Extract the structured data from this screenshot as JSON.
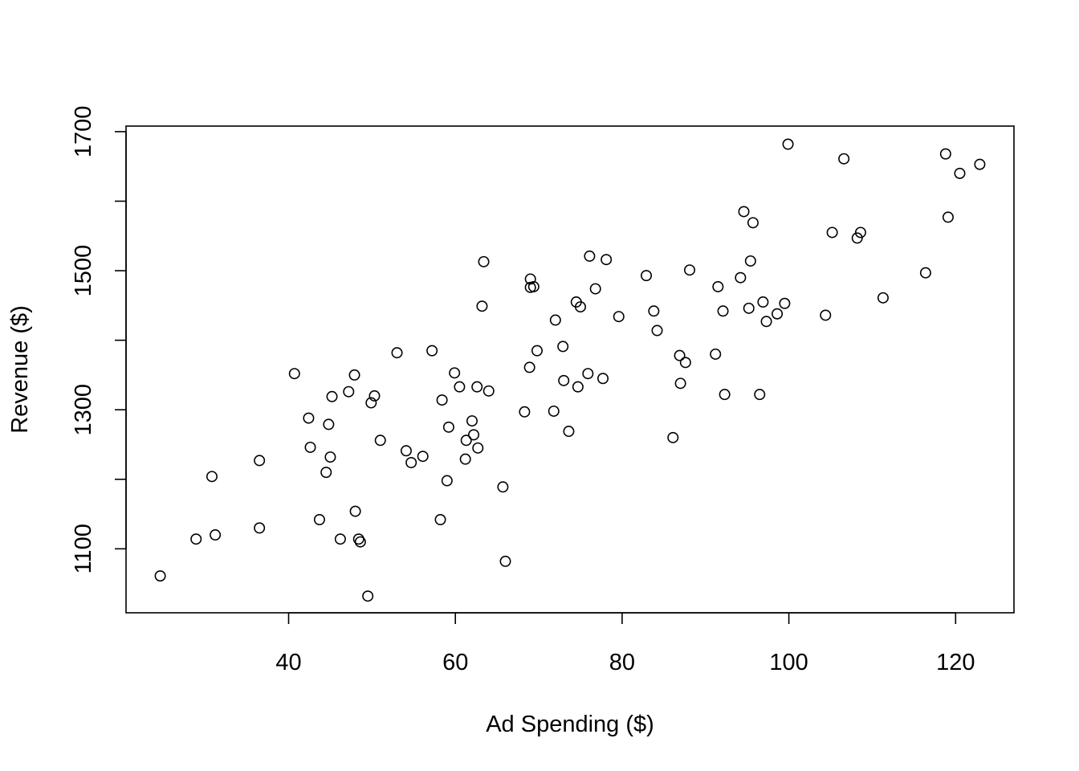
{
  "chart_data": {
    "type": "scatter",
    "title": "",
    "xlabel": "Ad Spending ($)",
    "ylabel": "Revenue ($)",
    "xlim": [
      20.5,
      127
    ],
    "ylim": [
      1008,
      1708
    ],
    "x_ticks": [
      40,
      60,
      80,
      100,
      120
    ],
    "x_tick_labels": [
      "40",
      "60",
      "80",
      "100",
      "120"
    ],
    "y_ticks": [
      1100,
      1200,
      1300,
      1400,
      1500,
      1600,
      1700
    ],
    "y_tick_labels": [
      "1100",
      "",
      "1300",
      "",
      "1500",
      "",
      "1700"
    ],
    "grid": false,
    "legend": "none",
    "marker": "open-circle",
    "color": "#000000",
    "points": [
      {
        "x": 24.6,
        "y": 1061
      },
      {
        "x": 28.9,
        "y": 1114
      },
      {
        "x": 30.8,
        "y": 1204
      },
      {
        "x": 31.2,
        "y": 1120
      },
      {
        "x": 36.5,
        "y": 1227
      },
      {
        "x": 36.5,
        "y": 1130
      },
      {
        "x": 40.7,
        "y": 1352
      },
      {
        "x": 42.4,
        "y": 1288
      },
      {
        "x": 42.6,
        "y": 1246
      },
      {
        "x": 43.7,
        "y": 1142
      },
      {
        "x": 44.5,
        "y": 1210
      },
      {
        "x": 44.8,
        "y": 1279
      },
      {
        "x": 45.0,
        "y": 1232
      },
      {
        "x": 45.2,
        "y": 1319
      },
      {
        "x": 46.2,
        "y": 1114
      },
      {
        "x": 47.2,
        "y": 1326
      },
      {
        "x": 47.9,
        "y": 1350
      },
      {
        "x": 48.0,
        "y": 1154
      },
      {
        "x": 48.4,
        "y": 1114
      },
      {
        "x": 48.6,
        "y": 1110
      },
      {
        "x": 49.5,
        "y": 1032
      },
      {
        "x": 49.9,
        "y": 1310
      },
      {
        "x": 50.3,
        "y": 1320
      },
      {
        "x": 51.0,
        "y": 1256
      },
      {
        "x": 53.0,
        "y": 1382
      },
      {
        "x": 54.1,
        "y": 1241
      },
      {
        "x": 54.7,
        "y": 1224
      },
      {
        "x": 56.1,
        "y": 1233
      },
      {
        "x": 57.2,
        "y": 1385
      },
      {
        "x": 58.2,
        "y": 1142
      },
      {
        "x": 58.4,
        "y": 1314
      },
      {
        "x": 59.0,
        "y": 1198
      },
      {
        "x": 59.2,
        "y": 1275
      },
      {
        "x": 59.9,
        "y": 1353
      },
      {
        "x": 60.5,
        "y": 1333
      },
      {
        "x": 61.2,
        "y": 1229
      },
      {
        "x": 61.3,
        "y": 1256
      },
      {
        "x": 62.0,
        "y": 1284
      },
      {
        "x": 62.2,
        "y": 1264
      },
      {
        "x": 62.6,
        "y": 1333
      },
      {
        "x": 62.7,
        "y": 1245
      },
      {
        "x": 63.2,
        "y": 1449
      },
      {
        "x": 63.4,
        "y": 1513
      },
      {
        "x": 64.0,
        "y": 1327
      },
      {
        "x": 65.7,
        "y": 1189
      },
      {
        "x": 66.0,
        "y": 1082
      },
      {
        "x": 68.3,
        "y": 1297
      },
      {
        "x": 68.9,
        "y": 1361
      },
      {
        "x": 69.0,
        "y": 1488
      },
      {
        "x": 69.0,
        "y": 1476
      },
      {
        "x": 69.4,
        "y": 1477
      },
      {
        "x": 69.8,
        "y": 1385
      },
      {
        "x": 71.8,
        "y": 1298
      },
      {
        "x": 72.0,
        "y": 1429
      },
      {
        "x": 72.9,
        "y": 1391
      },
      {
        "x": 73.0,
        "y": 1342
      },
      {
        "x": 73.6,
        "y": 1269
      },
      {
        "x": 74.5,
        "y": 1455
      },
      {
        "x": 74.7,
        "y": 1333
      },
      {
        "x": 75.0,
        "y": 1448
      },
      {
        "x": 75.9,
        "y": 1352
      },
      {
        "x": 76.1,
        "y": 1521
      },
      {
        "x": 76.8,
        "y": 1474
      },
      {
        "x": 77.7,
        "y": 1345
      },
      {
        "x": 78.1,
        "y": 1516
      },
      {
        "x": 79.6,
        "y": 1434
      },
      {
        "x": 82.9,
        "y": 1493
      },
      {
        "x": 83.8,
        "y": 1442
      },
      {
        "x": 84.2,
        "y": 1414
      },
      {
        "x": 86.1,
        "y": 1260
      },
      {
        "x": 86.9,
        "y": 1378
      },
      {
        "x": 87.0,
        "y": 1338
      },
      {
        "x": 87.6,
        "y": 1368
      },
      {
        "x": 88.1,
        "y": 1501
      },
      {
        "x": 91.2,
        "y": 1380
      },
      {
        "x": 91.5,
        "y": 1477
      },
      {
        "x": 92.1,
        "y": 1442
      },
      {
        "x": 92.3,
        "y": 1322
      },
      {
        "x": 94.2,
        "y": 1490
      },
      {
        "x": 94.6,
        "y": 1585
      },
      {
        "x": 95.2,
        "y": 1446
      },
      {
        "x": 95.4,
        "y": 1514
      },
      {
        "x": 95.7,
        "y": 1569
      },
      {
        "x": 96.5,
        "y": 1322
      },
      {
        "x": 96.9,
        "y": 1455
      },
      {
        "x": 97.3,
        "y": 1427
      },
      {
        "x": 98.6,
        "y": 1438
      },
      {
        "x": 99.5,
        "y": 1453
      },
      {
        "x": 99.9,
        "y": 1682
      },
      {
        "x": 104.4,
        "y": 1436
      },
      {
        "x": 105.2,
        "y": 1555
      },
      {
        "x": 106.6,
        "y": 1661
      },
      {
        "x": 108.2,
        "y": 1547
      },
      {
        "x": 108.6,
        "y": 1555
      },
      {
        "x": 111.3,
        "y": 1461
      },
      {
        "x": 116.4,
        "y": 1497
      },
      {
        "x": 118.8,
        "y": 1668
      },
      {
        "x": 119.1,
        "y": 1577
      },
      {
        "x": 120.5,
        "y": 1640
      },
      {
        "x": 122.9,
        "y": 1653
      }
    ]
  }
}
